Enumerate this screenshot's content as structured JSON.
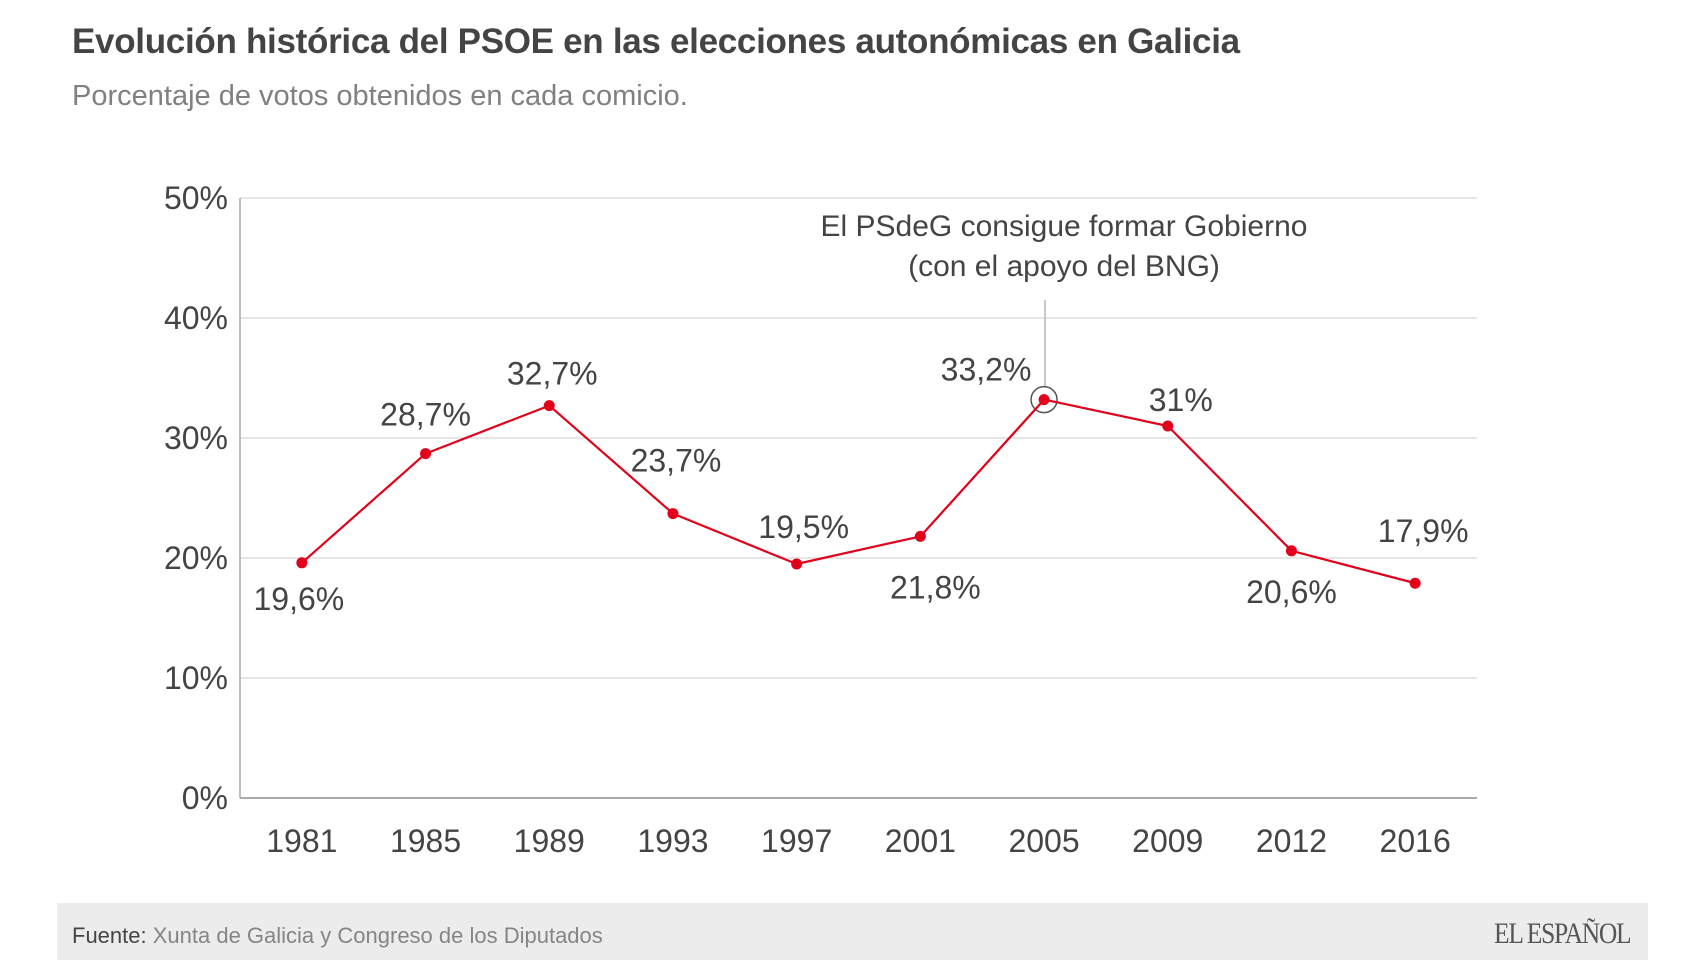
{
  "header": {
    "title": "Evolución histórica del PSOE en las elecciones autonómicas en Galicia",
    "subtitle": "Porcentaje de votos obtenidos en cada comicio."
  },
  "chart_data": {
    "type": "line",
    "title": "Evolución histórica del PSOE en las elecciones autonómicas en Galicia",
    "subtitle": "Porcentaje de votos obtenidos en cada comicio.",
    "xlabel": "",
    "ylabel": "",
    "categories": [
      "1981",
      "1985",
      "1989",
      "1993",
      "1997",
      "2001",
      "2005",
      "2009",
      "2012",
      "2016"
    ],
    "series": [
      {
        "name": "PSOE",
        "color": "#e2001a",
        "values": [
          19.6,
          28.7,
          32.7,
          23.7,
          19.5,
          21.8,
          33.2,
          31.0,
          20.6,
          17.9
        ],
        "data_labels": [
          "19,6%",
          "28,7%",
          "32,7%",
          "23,7%",
          "19,5%",
          "21,8%",
          "33,2%",
          "31%",
          "20,6%",
          "17,9%"
        ],
        "label_positions": [
          "below",
          "above",
          "above",
          "above",
          "above",
          "below",
          "above-left",
          "above",
          "below",
          "above"
        ]
      }
    ],
    "ylim": [
      0,
      50
    ],
    "yticks": [
      0,
      10,
      20,
      30,
      40,
      50
    ],
    "ytick_labels": [
      "0%",
      "10%",
      "20%",
      "30%",
      "40%",
      "50%"
    ],
    "grid": true,
    "legend": "none",
    "annotations": [
      {
        "category": "2005",
        "text_lines": [
          "El PSdeG consigue formar Gobierno",
          "(con el apoyo del BNG)"
        ],
        "highlight": "circle"
      }
    ]
  },
  "footer": {
    "source_label": "Fuente:",
    "source_text": "Xunta de Galicia y Congreso de los Diputados",
    "logo": "EL ESPAÑOL"
  },
  "colors": {
    "line": "#e2001a",
    "text": "#444444",
    "subtitle": "#808080",
    "grid": "#dddddd",
    "axis": "#aaaaaa",
    "footer_bg": "#ececec"
  }
}
